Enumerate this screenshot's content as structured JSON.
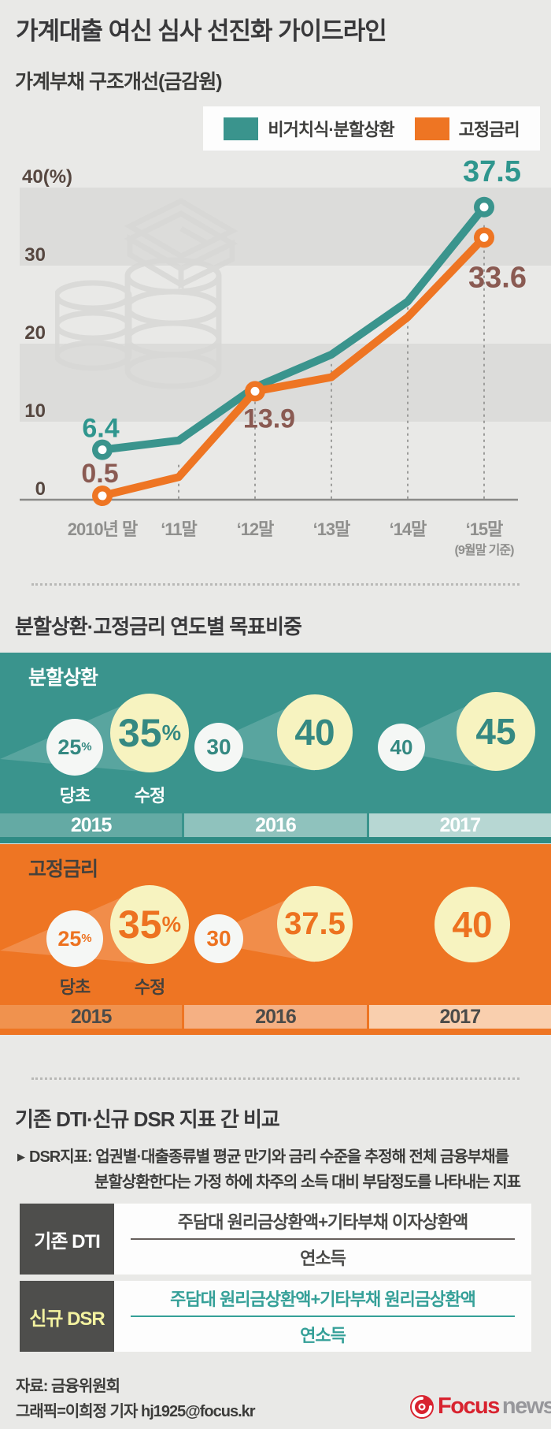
{
  "header": {
    "title": "가계대출 여신 심사 선진화 가이드라인",
    "chart_title": "가계부채 구조개선(금감원)"
  },
  "legend": {
    "items": [
      {
        "label": "비거치식·분할상환",
        "color": "#3a948d"
      },
      {
        "label": "고정금리",
        "color": "#ee7523"
      }
    ]
  },
  "chart_data": {
    "type": "line",
    "title": "가계부채 구조개선(금감원)",
    "unit": "%",
    "categories": [
      "2010년 말",
      "‘11말",
      "‘12말",
      "‘13말",
      "‘14말",
      "‘15말"
    ],
    "x_note": "(9월말 기준)",
    "y_ticks": [
      "0",
      "10",
      "20",
      "30",
      "40(%)"
    ],
    "ylim": [
      0,
      40
    ],
    "grid": "banded",
    "legend_position": "top-right",
    "series": [
      {
        "name": "비거치식·분할상환",
        "color": "#3a948d",
        "label_color": "#2f968e",
        "values": [
          6.4,
          7.6,
          14.4,
          18.6,
          25.4,
          37.5
        ],
        "marker_indices": [
          0,
          5
        ],
        "point_labels": {
          "0": "6.4",
          "5": "37.5"
        }
      },
      {
        "name": "고정금리",
        "color": "#ee7523",
        "label_color": "#8a5a52",
        "values": [
          0.5,
          2.9,
          13.9,
          15.7,
          23.4,
          33.6
        ],
        "marker_indices": [
          0,
          2,
          5
        ],
        "point_labels": {
          "0": "0.5",
          "2": "13.9",
          "5": "33.6"
        }
      }
    ]
  },
  "section2": {
    "title": "분할상환·고정금리 연도별 목표비중",
    "panels": [
      {
        "name": "분할상환",
        "bg": "#3a948d",
        "year_colors": [
          "#64aaa4",
          "#8fc2bd",
          "#b7d7d3"
        ],
        "groups": [
          {
            "year": "2015",
            "small": "25",
            "small_suffix": "%",
            "small_label": "당초",
            "big": "35",
            "big_suffix": "%",
            "big_label": "수정"
          },
          {
            "year": "2016",
            "small": "30",
            "big": "40"
          },
          {
            "year": "2017",
            "small": "40",
            "big": "45"
          }
        ]
      },
      {
        "name": "고정금리",
        "bg": "#ee7523",
        "year_colors": [
          "#f0924e",
          "#f5b083",
          "#f9cfae"
        ],
        "groups": [
          {
            "year": "2015",
            "small": "25",
            "small_suffix": "%",
            "small_label": "당초",
            "big": "35",
            "big_suffix": "%",
            "big_label": "수정"
          },
          {
            "year": "2016",
            "small": "30",
            "big": "37.5"
          },
          {
            "year": "2017",
            "big": "40"
          }
        ]
      }
    ]
  },
  "section3": {
    "title": "기존 DTI·신규 DSR 지표 간 비교",
    "note_line1": "DSR지표: 업권별·대출종류별 평균 만기와 금리 수준을 추정해 전체 금융부채를",
    "note_line2": "분할상환한다는 가정 하에 차주의 소득 대비 부담정도를 나타내는 지표",
    "table": [
      {
        "label": "기존 DTI",
        "numerator": "주담대 원리금상환액+기타부채 이자상환액",
        "denominator": "연소득"
      },
      {
        "label": "신규 DSR",
        "numerator": "주담대 원리금상환액+기타부채 원리금상환액",
        "denominator": "연소득"
      }
    ]
  },
  "footer": {
    "source": "자료: 금융위원회",
    "credit": "그래픽=이희정 기자 hj1925@focus.kr",
    "logo_focus": "Focus",
    "logo_news": "news"
  },
  "colors": {
    "background": "#e9e9e7",
    "band": "#dcdcda",
    "teal": "#3a948d",
    "orange": "#ee7523",
    "pale_yellow_circle": "#f7f3c0",
    "maroon_label": "#8a5a52",
    "dark_cell": "#4e4e4c",
    "dsr_label_yellow": "#f3f2a0",
    "logo_red": "#d8232f"
  }
}
